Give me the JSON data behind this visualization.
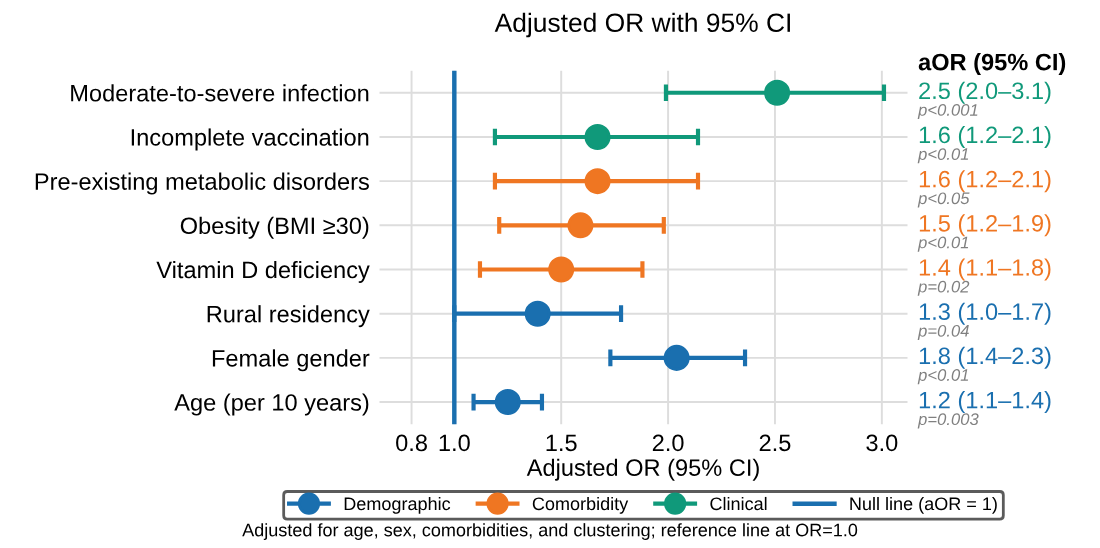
{
  "chart_data": {
    "type": "scatter",
    "orientation": "horizontal",
    "title": "Adjusted OR with 95% CI",
    "xlabel": "Adjusted OR (95% CI)",
    "categories": [
      "Moderate-to-severe infection",
      "Incomplete vaccination",
      "Pre-existing metabolic disorders",
      "Obesity (BMI ≥30)",
      "Vitamin D deficiency",
      "Rural residency",
      "Female gender",
      "Age (per 10 years)"
    ],
    "series": [
      {
        "name": "Demographic",
        "color": "#1a6faf",
        "values": [
          null,
          null,
          null,
          null,
          null,
          1.39,
          2.04,
          1.25
        ],
        "errors": [
          null,
          null,
          null,
          null,
          null,
          [
            1.0,
            1.78
          ],
          [
            1.73,
            2.36
          ],
          [
            1.09,
            1.41
          ]
        ]
      },
      {
        "name": "Comorbidity",
        "color": "#ef7622",
        "values": [
          null,
          null,
          1.67,
          1.59,
          1.5,
          null,
          null,
          null
        ],
        "errors": [
          null,
          null,
          [
            1.19,
            2.14
          ],
          [
            1.21,
            1.98
          ],
          [
            1.12,
            1.88
          ],
          null,
          null,
          null
        ]
      },
      {
        "name": "Clinical",
        "color": "#10997a",
        "values": [
          2.51,
          1.67,
          null,
          null,
          null,
          null,
          null,
          null
        ],
        "errors": [
          [
            1.99,
            3.01
          ],
          [
            1.19,
            2.14
          ],
          null,
          null,
          null,
          null,
          null,
          null
        ]
      }
    ],
    "marker": "circle",
    "ref_lines": [
      {
        "axis": "x",
        "value": 1.0,
        "label": "Null line (aOR = 1)",
        "color": "#1a6faf"
      }
    ],
    "xlim": [
      0.65,
      3.12
    ],
    "xticks": [
      0.8,
      {
        "value": 1.0,
        "label": "1.0"
      },
      1.5,
      {
        "value": 2.0,
        "label": "2.0"
      },
      2.5,
      {
        "value": 3.0,
        "label": "3.0"
      }
    ],
    "grid": true,
    "legend": "bottom",
    "annotations": [
      "2.5 (2.0–3.1)",
      "1.6 (1.2–2.1)",
      "1.6 (1.2–2.1)",
      "1.5 (1.2–1.9)",
      "1.4 (1.1–1.8)",
      "1.3 (1.0–1.7)",
      "1.8 (1.4–2.3)",
      "1.2 (1.1–1.4)",
      "p<0.001",
      "p<0.01",
      "p<0.05",
      "p<0.01",
      "p=0.02",
      "p=0.04",
      "p<0.01",
      "p=0.003",
      "aOR (95% CI)",
      "Adjusted for age, sex, comorbidities, and clustering; reference line at OR=1.0"
    ]
  }
}
